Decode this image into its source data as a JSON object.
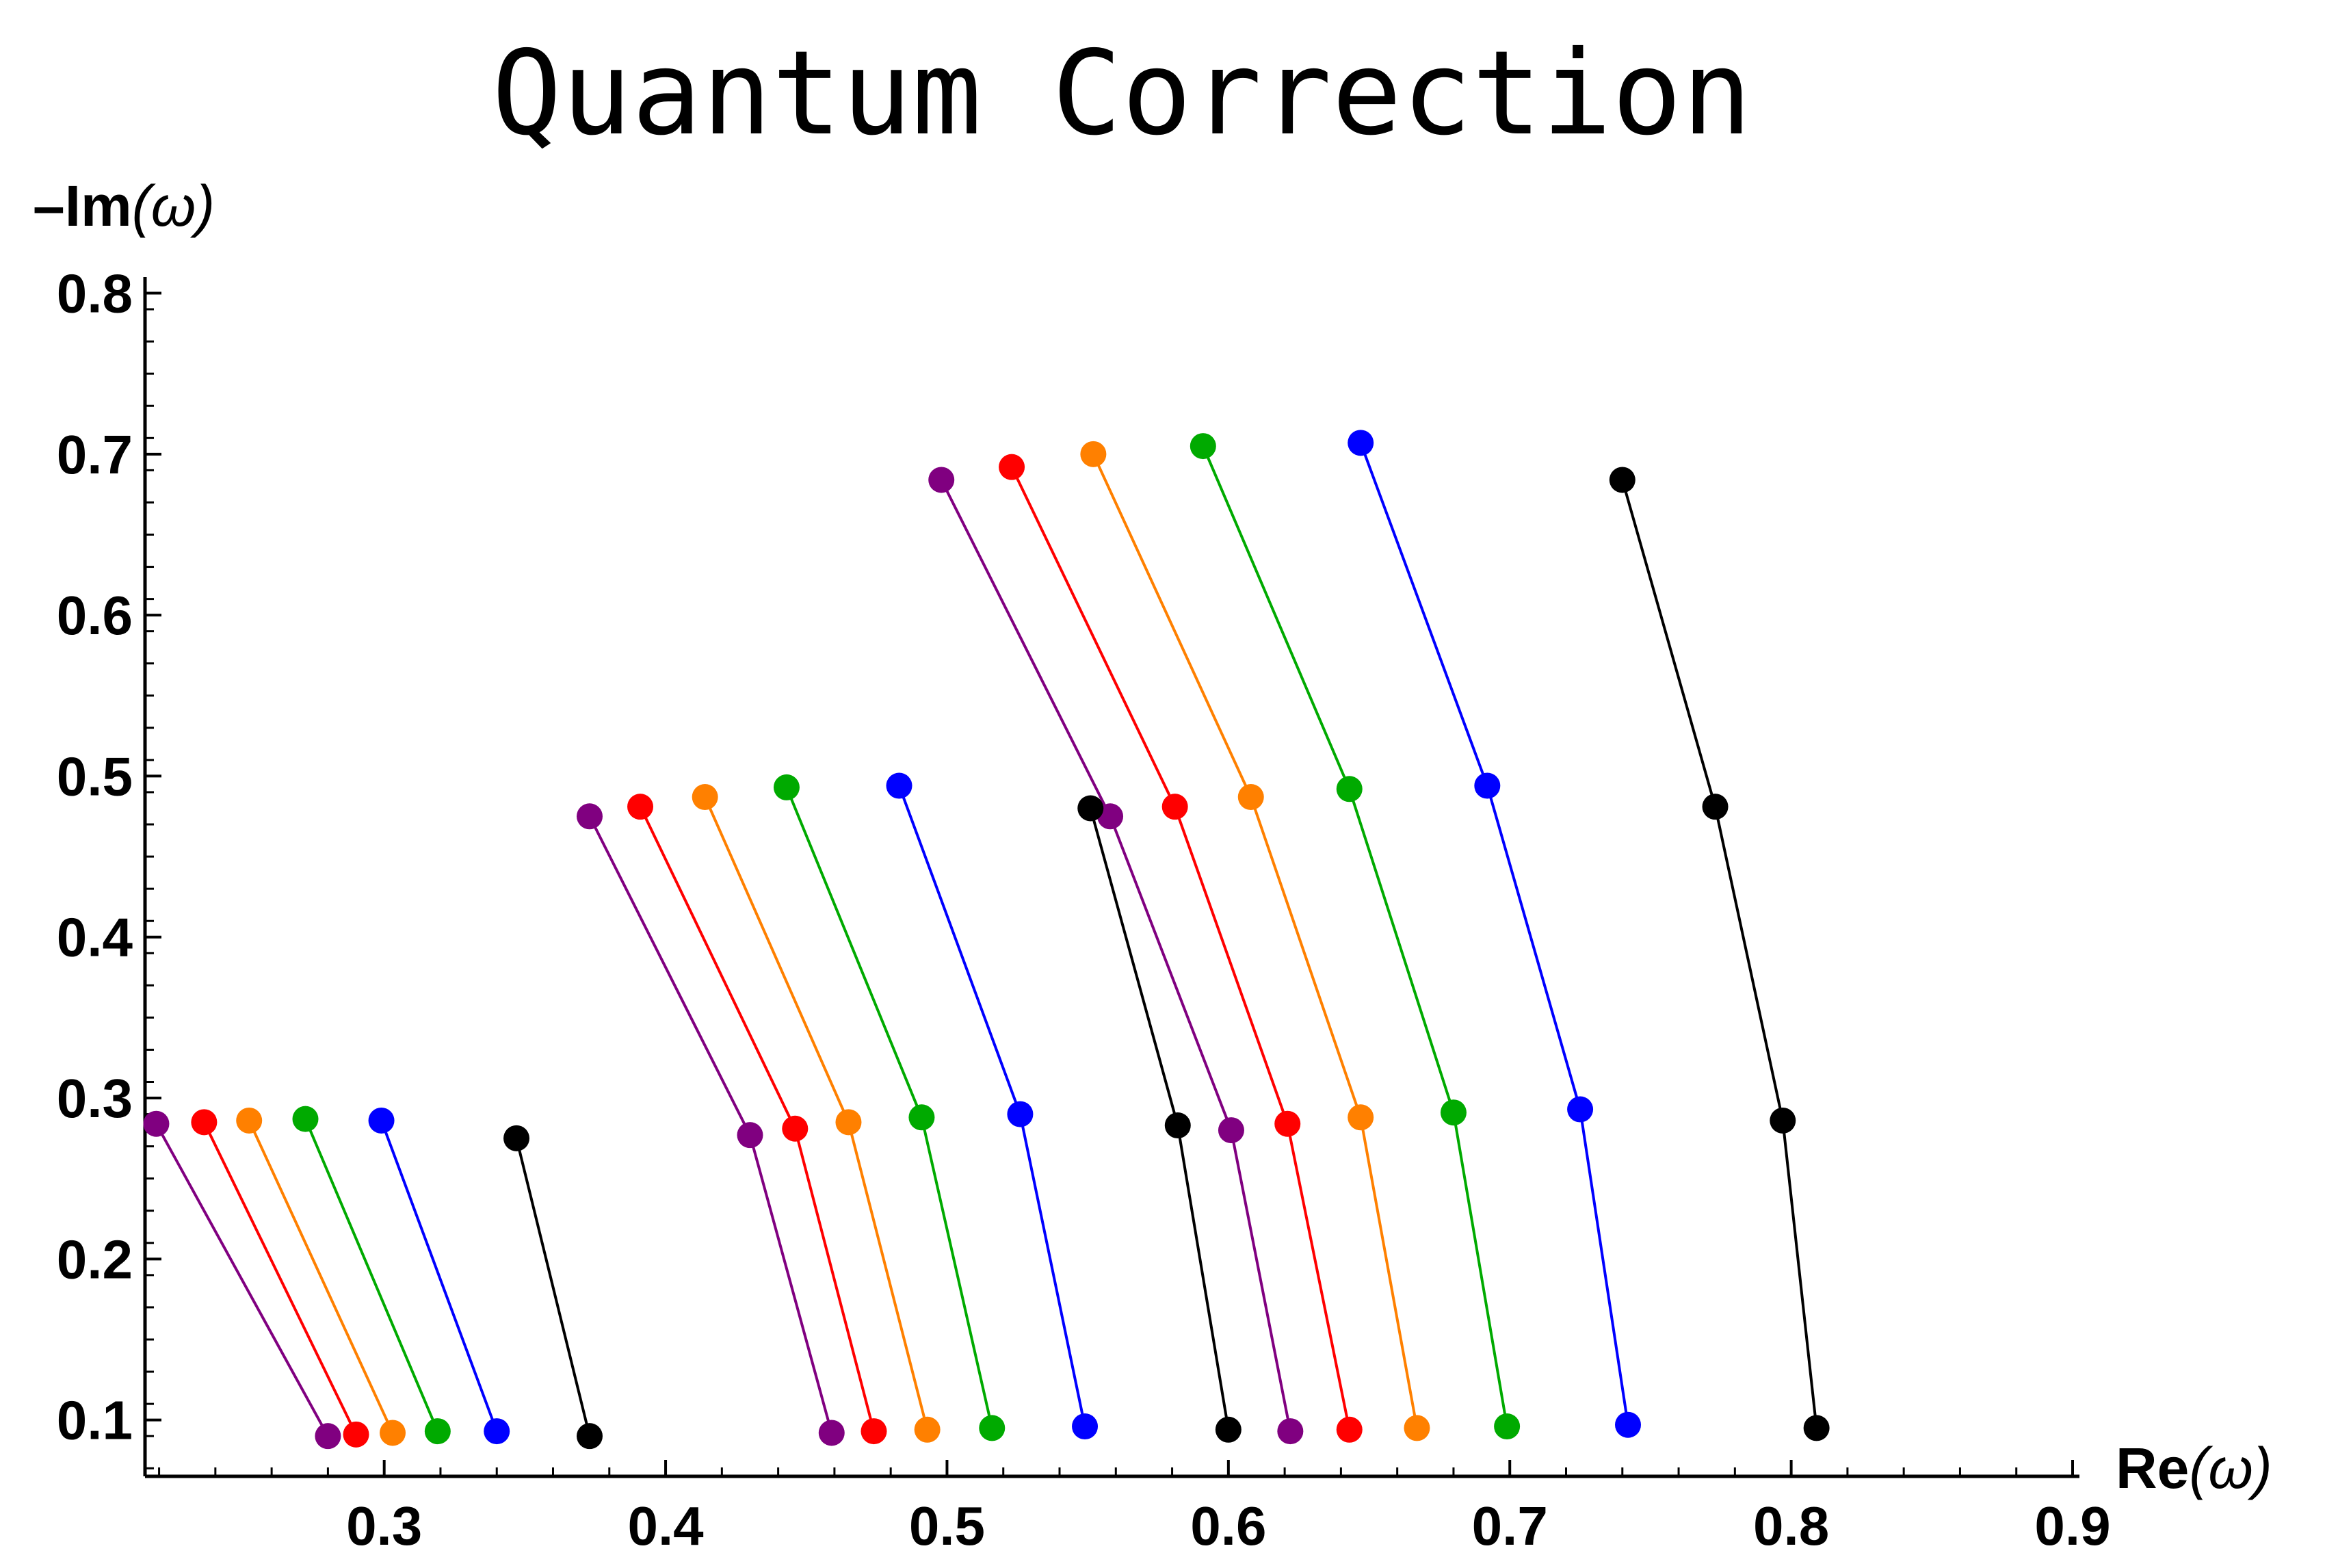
{
  "chart_data": {
    "type": "scatter",
    "title": "Quantum Correction",
    "xlabel": {
      "bold": "Re",
      "rest": "(ω)"
    },
    "ylabel": {
      "bold": "–Im",
      "rest": "(ω)"
    },
    "xlim": [
      0.215,
      0.9
    ],
    "ylim": [
      0.065,
      0.81
    ],
    "xticks": [
      0.3,
      0.4,
      0.5,
      0.6,
      0.7,
      0.8,
      0.9
    ],
    "yticks": [
      0.1,
      0.2,
      0.3,
      0.4,
      0.5,
      0.6,
      0.7,
      0.8
    ],
    "tick_labels_x": [
      "0.3",
      "0.4",
      "0.5",
      "0.6",
      "0.7",
      "0.8",
      "0.9"
    ],
    "tick_labels_y": [
      "0.1",
      "0.2",
      "0.3",
      "0.4",
      "0.5",
      "0.6",
      "0.7",
      "0.8"
    ],
    "grid": false,
    "series": [
      {
        "color": "#800080",
        "points": [
          [
            0.498,
            0.684
          ],
          [
            0.558,
            0.475
          ],
          [
            0.601,
            0.28
          ],
          [
            0.622,
            0.093
          ]
        ]
      },
      {
        "color": "#ff0000",
        "points": [
          [
            0.523,
            0.692
          ],
          [
            0.581,
            0.481
          ],
          [
            0.621,
            0.284
          ],
          [
            0.643,
            0.094
          ]
        ]
      },
      {
        "color": "#ff8000",
        "points": [
          [
            0.552,
            0.7
          ],
          [
            0.608,
            0.487
          ],
          [
            0.647,
            0.288
          ],
          [
            0.667,
            0.095
          ]
        ]
      },
      {
        "color": "#00aa00",
        "points": [
          [
            0.591,
            0.705
          ],
          [
            0.643,
            0.492
          ],
          [
            0.68,
            0.291
          ],
          [
            0.699,
            0.096
          ]
        ]
      },
      {
        "color": "#0000ff",
        "points": [
          [
            0.647,
            0.707
          ],
          [
            0.692,
            0.494
          ],
          [
            0.725,
            0.293
          ],
          [
            0.742,
            0.097
          ]
        ]
      },
      {
        "color": "#000000",
        "points": [
          [
            0.74,
            0.684
          ],
          [
            0.773,
            0.481
          ],
          [
            0.797,
            0.286
          ],
          [
            0.809,
            0.095
          ]
        ]
      },
      {
        "color": "#800080",
        "points": [
          [
            0.373,
            0.475
          ],
          [
            0.43,
            0.277
          ],
          [
            0.459,
            0.092
          ]
        ]
      },
      {
        "color": "#ff0000",
        "points": [
          [
            0.391,
            0.481
          ],
          [
            0.446,
            0.281
          ],
          [
            0.474,
            0.093
          ]
        ]
      },
      {
        "color": "#ff8000",
        "points": [
          [
            0.414,
            0.487
          ],
          [
            0.465,
            0.285
          ],
          [
            0.493,
            0.094
          ]
        ]
      },
      {
        "color": "#00aa00",
        "points": [
          [
            0.443,
            0.493
          ],
          [
            0.491,
            0.288
          ],
          [
            0.516,
            0.095
          ]
        ]
      },
      {
        "color": "#0000ff",
        "points": [
          [
            0.483,
            0.494
          ],
          [
            0.526,
            0.29
          ],
          [
            0.549,
            0.096
          ]
        ]
      },
      {
        "color": "#000000",
        "points": [
          [
            0.551,
            0.48
          ],
          [
            0.582,
            0.283
          ],
          [
            0.6,
            0.094
          ]
        ]
      },
      {
        "color": "#800080",
        "points": [
          [
            0.219,
            0.284
          ],
          [
            0.28,
            0.09
          ]
        ]
      },
      {
        "color": "#ff0000",
        "points": [
          [
            0.236,
            0.285
          ],
          [
            0.29,
            0.091
          ]
        ]
      },
      {
        "color": "#ff8000",
        "points": [
          [
            0.252,
            0.286
          ],
          [
            0.303,
            0.092
          ]
        ]
      },
      {
        "color": "#00aa00",
        "points": [
          [
            0.272,
            0.287
          ],
          [
            0.319,
            0.093
          ]
        ]
      },
      {
        "color": "#0000ff",
        "points": [
          [
            0.299,
            0.286
          ],
          [
            0.34,
            0.093
          ]
        ]
      },
      {
        "color": "#000000",
        "points": [
          [
            0.347,
            0.275
          ],
          [
            0.373,
            0.09
          ]
        ]
      }
    ]
  }
}
